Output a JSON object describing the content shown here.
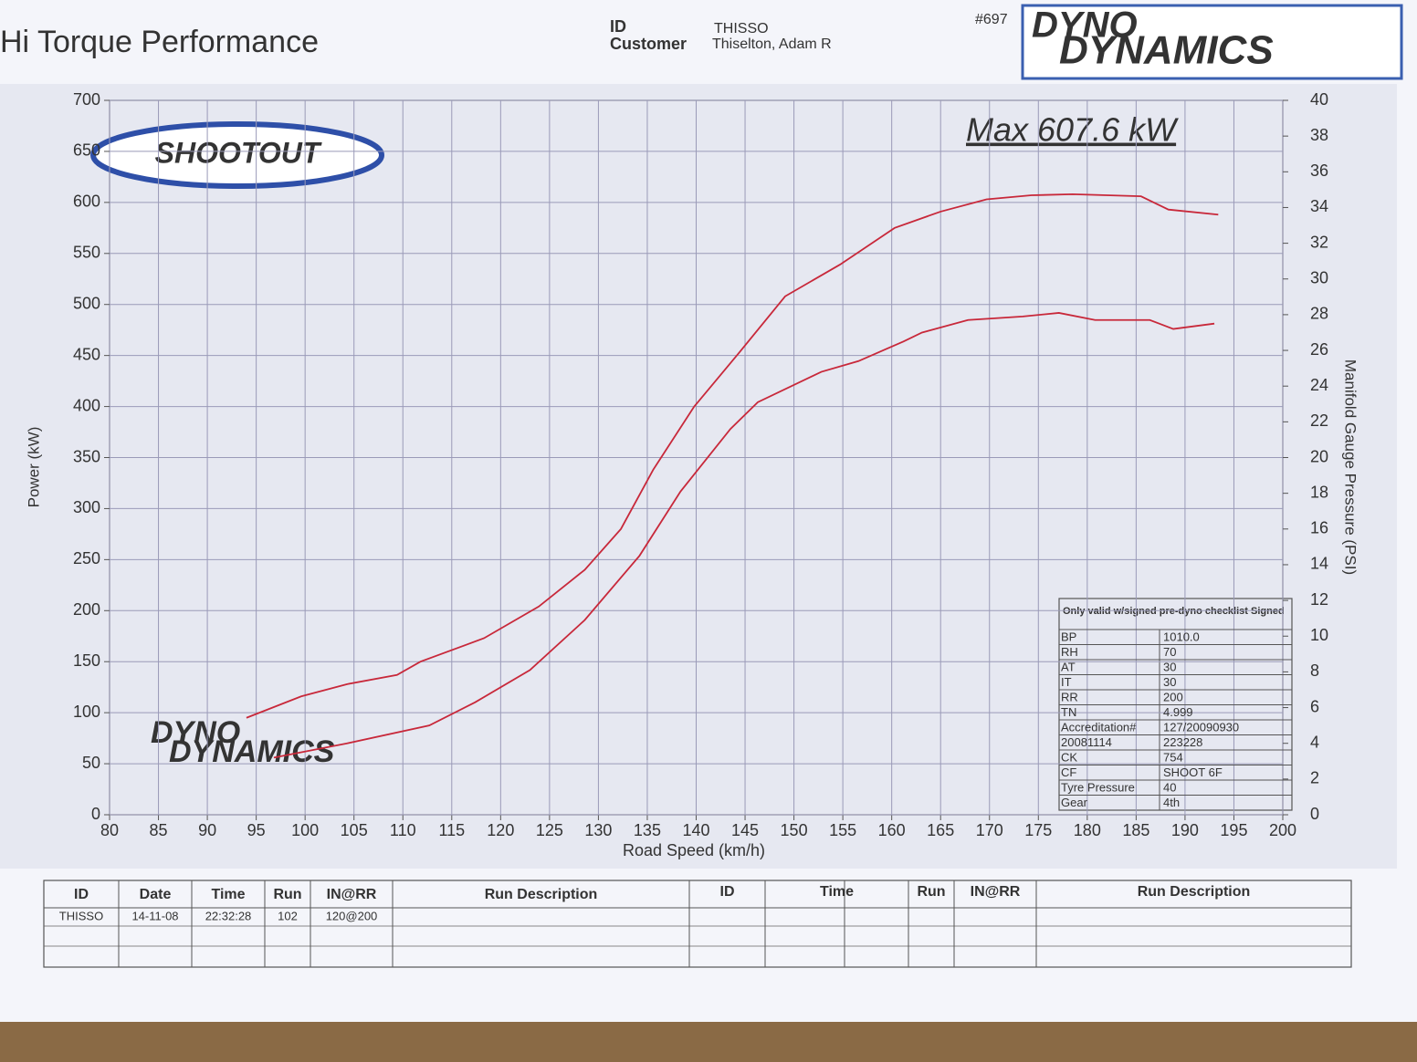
{
  "chart_data": {
    "type": "line",
    "title": "Hi Torque Performance",
    "id_label": "ID",
    "id": "THISSO",
    "customer_label": "Customer",
    "customer": "Thiselton, Adam R",
    "sheet_number": "#697",
    "brand_top": "DYNO",
    "brand_bottom": "DYNAMICS",
    "logo": "SHOOTOUT",
    "annotation": "Max 607.6 kW",
    "xlabel": "Road Speed (km/h)",
    "ylabel": "Power (kW)",
    "y2label": "Manifold Gauge Pressure (PSI)",
    "xlim": [
      80,
      200
    ],
    "xticks": [
      80,
      85,
      90,
      95,
      100,
      105,
      110,
      115,
      120,
      125,
      130,
      135,
      140,
      145,
      150,
      155,
      160,
      165,
      170,
      175,
      180,
      185,
      190,
      195,
      200
    ],
    "ylim": [
      0,
      700
    ],
    "yticks": [
      0,
      50,
      100,
      150,
      200,
      250,
      300,
      350,
      400,
      450,
      500,
      550,
      600,
      650,
      700
    ],
    "y2lim": [
      0,
      40
    ],
    "y2ticks": [
      0,
      2,
      4,
      6,
      8,
      10,
      12,
      14,
      16,
      18,
      20,
      22,
      24,
      26,
      28,
      30,
      32,
      34,
      36,
      38,
      40
    ],
    "grid": true,
    "series": [
      {
        "color": "#c8283a",
        "x": [
          94,
          99.6,
          104.3,
          109.4,
          111.8,
          118.3,
          123.9,
          128.6,
          132.3,
          135.6,
          139.8,
          144.5,
          149.1,
          154.7,
          160.3,
          165,
          169.7,
          174.3,
          178.5,
          185.5,
          188.3,
          193.4
        ],
        "values": [
          95,
          116,
          128,
          137,
          150,
          173,
          204,
          240,
          280,
          338,
          400,
          454,
          508,
          539,
          575,
          591,
          603,
          607,
          608,
          606,
          593,
          588
        ]
      },
      {
        "color": "#c8283a",
        "axis": "y2",
        "x": [
          96.8,
          104.3,
          112.7,
          117.4,
          123,
          128.6,
          134.2,
          138.4,
          143.5,
          146.3,
          152.8,
          156.6,
          161.2,
          163.1,
          167.8,
          173.4,
          177.1,
          180.8,
          186.4,
          188.8,
          193
        ],
        "values": [
          3.2,
          4.0,
          5.0,
          6.3,
          8.1,
          10.9,
          14.5,
          18.1,
          21.6,
          23.1,
          24.8,
          25.4,
          26.5,
          27.0,
          27.7,
          27.9,
          28.1,
          27.7,
          27.7,
          27.2,
          27.5
        ]
      }
    ],
    "info_table": {
      "note": "Only valid w/signed pre-dyno checklist Signed",
      "rows": [
        [
          "BP",
          "1010.0"
        ],
        [
          "RH",
          "70"
        ],
        [
          "AT",
          "30"
        ],
        [
          "IT",
          "30"
        ],
        [
          "RR",
          "200"
        ],
        [
          "TN",
          "4.999"
        ],
        [
          "Accreditation#",
          "127/20090930"
        ],
        [
          "20081114",
          "223228"
        ],
        [
          "CK",
          "754"
        ],
        [
          "CF",
          "SHOOT 6F"
        ],
        [
          "Tyre Pressure",
          "40"
        ],
        [
          "Gear",
          "4th"
        ]
      ]
    },
    "run_table": {
      "headers_left": [
        "ID",
        "Date",
        "Time",
        "Run",
        "IN@RR",
        "Run Description"
      ],
      "headers_right": [
        "ID",
        "Time",
        "Run",
        "IN@RR",
        "Run Description"
      ],
      "rows": [
        [
          "THISSO",
          "14-11-08",
          "22:32:28",
          "102",
          "120@200"
        ]
      ]
    }
  }
}
